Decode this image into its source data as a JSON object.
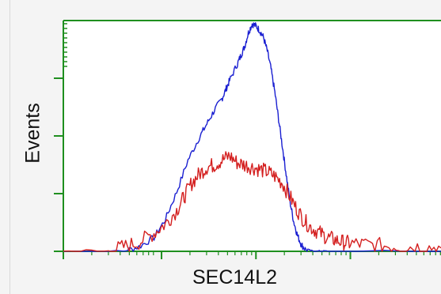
{
  "chart_data": {
    "type": "line",
    "title": "",
    "xlabel": "SEC14L2",
    "ylabel": "Events",
    "xlim": [
      0,
      1
    ],
    "ylim": [
      0,
      1
    ],
    "grid": false,
    "legend": "none",
    "series": [
      {
        "color": "#1a1fd1",
        "x": [
          0.0,
          0.16,
          0.2,
          0.24,
          0.27,
          0.3,
          0.33,
          0.36,
          0.38,
          0.4,
          0.42,
          0.43,
          0.44,
          0.46,
          0.47,
          0.48,
          0.49,
          0.5,
          0.51,
          0.52,
          0.53,
          0.54,
          0.55,
          0.56,
          0.57,
          0.58,
          0.59,
          0.6,
          0.61,
          0.62,
          0.63,
          0.64,
          0.66,
          0.68,
          0.7,
          1.0
        ],
        "y": [
          0.0,
          0.0,
          0.02,
          0.06,
          0.14,
          0.26,
          0.4,
          0.5,
          0.56,
          0.62,
          0.67,
          0.71,
          0.75,
          0.82,
          0.86,
          0.9,
          0.96,
          1.0,
          0.99,
          0.97,
          0.94,
          0.88,
          0.8,
          0.7,
          0.58,
          0.46,
          0.34,
          0.22,
          0.13,
          0.07,
          0.03,
          0.01,
          0.0,
          0.0,
          0.0,
          0.0
        ]
      },
      {
        "color": "#d42020",
        "x": [
          0.0,
          0.12,
          0.16,
          0.2,
          0.24,
          0.27,
          0.3,
          0.32,
          0.34,
          0.36,
          0.38,
          0.4,
          0.42,
          0.44,
          0.46,
          0.48,
          0.5,
          0.52,
          0.54,
          0.56,
          0.58,
          0.6,
          0.62,
          0.64,
          0.66,
          0.68,
          0.7,
          0.72,
          0.74,
          0.76,
          0.8,
          0.85,
          0.9,
          0.95,
          1.0
        ],
        "y": [
          0.0,
          0.0,
          0.02,
          0.04,
          0.08,
          0.12,
          0.18,
          0.24,
          0.3,
          0.34,
          0.37,
          0.38,
          0.4,
          0.42,
          0.39,
          0.38,
          0.37,
          0.36,
          0.35,
          0.33,
          0.3,
          0.24,
          0.18,
          0.13,
          0.1,
          0.08,
          0.06,
          0.05,
          0.04,
          0.035,
          0.03,
          0.025,
          0.02,
          0.02,
          0.015
        ]
      }
    ]
  }
}
